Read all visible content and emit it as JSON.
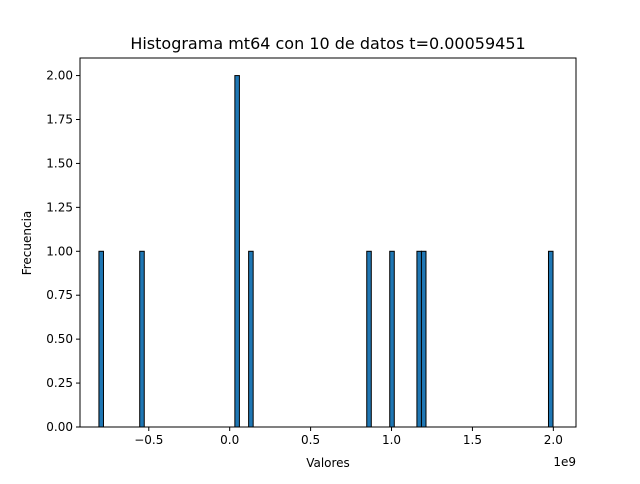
{
  "chart_data": {
    "type": "bar",
    "title": "Histograma mt64 con 10 de datos t=0.00059451",
    "xlabel": "Valores",
    "ylabel": "Frecuencia",
    "x_offset_label": "1e9",
    "x_scale": 1000000000,
    "xlim": [
      -0.925,
      2.14
    ],
    "ylim": [
      0,
      2.1
    ],
    "x_ticks": [
      {
        "value": -0.5,
        "label": "−0.5"
      },
      {
        "value": 0.0,
        "label": "0.0"
      },
      {
        "value": 0.5,
        "label": "0.5"
      },
      {
        "value": 1.0,
        "label": "1.0"
      },
      {
        "value": 1.5,
        "label": "1.5"
      },
      {
        "value": 2.0,
        "label": "2.0"
      }
    ],
    "y_ticks": [
      {
        "value": 0.0,
        "label": "0.00"
      },
      {
        "value": 0.25,
        "label": "0.25"
      },
      {
        "value": 0.5,
        "label": "0.50"
      },
      {
        "value": 0.75,
        "label": "0.75"
      },
      {
        "value": 1.0,
        "label": "1.00"
      },
      {
        "value": 1.25,
        "label": "1.25"
      },
      {
        "value": 1.5,
        "label": "1.50"
      },
      {
        "value": 1.75,
        "label": "1.75"
      },
      {
        "value": 2.0,
        "label": "2.00"
      }
    ],
    "bin_width": 0.0281,
    "bars": [
      {
        "x": -0.794,
        "count": 1
      },
      {
        "x": -0.542,
        "count": 1
      },
      {
        "x": 0.046,
        "count": 2
      },
      {
        "x": 0.131,
        "count": 1
      },
      {
        "x": 0.861,
        "count": 1
      },
      {
        "x": 1.003,
        "count": 1
      },
      {
        "x": 1.171,
        "count": 1
      },
      {
        "x": 1.199,
        "count": 1
      },
      {
        "x": 1.984,
        "count": 1
      }
    ],
    "grid": false,
    "legend": false,
    "colors": {
      "bar_fill": "#1f77b4",
      "bar_edge": "#000000",
      "axes": "#000000",
      "background": "#ffffff"
    }
  }
}
